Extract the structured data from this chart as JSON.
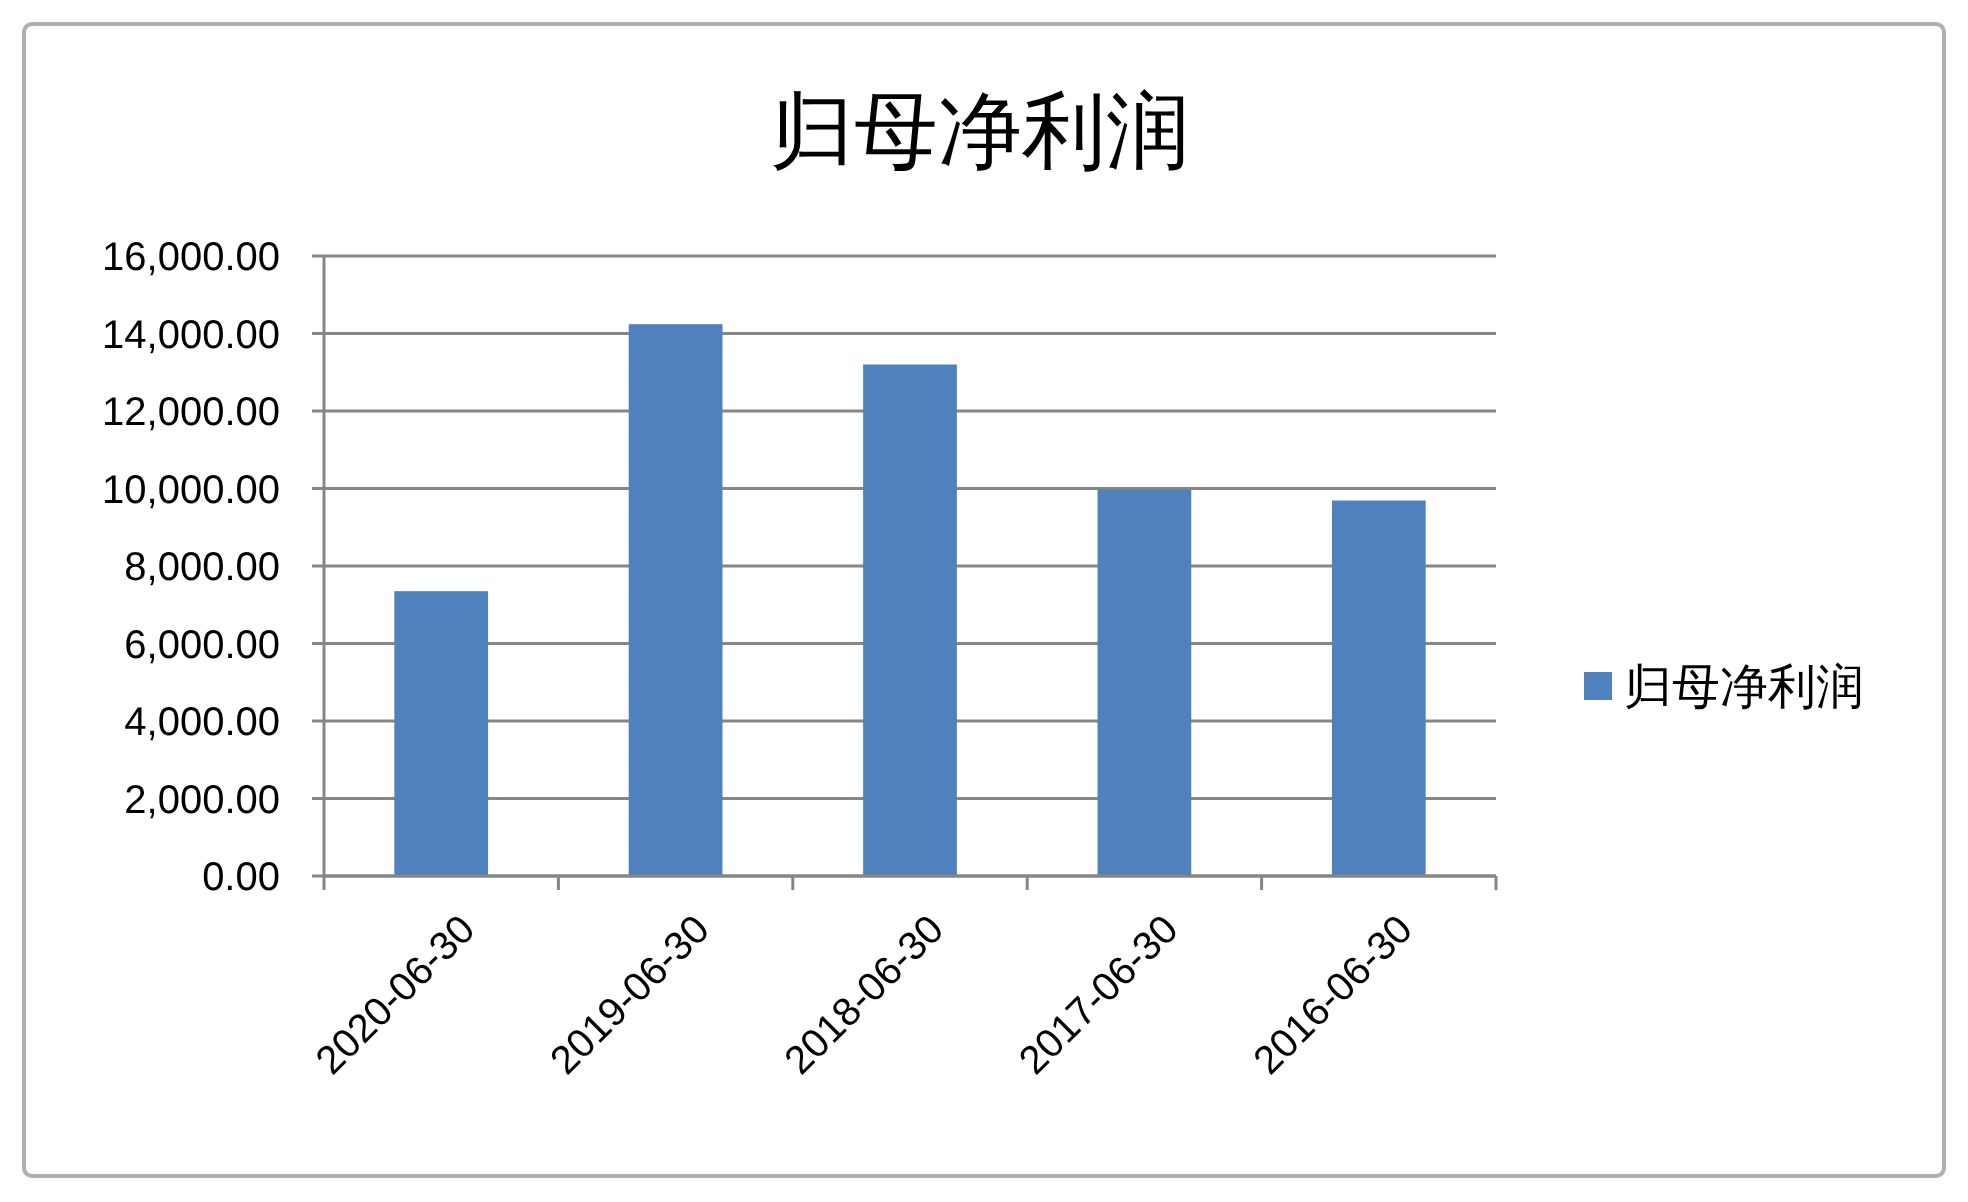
{
  "chart_data": {
    "type": "bar",
    "title": "归母净利润",
    "categories": [
      "2020-06-30",
      "2019-06-30",
      "2018-06-30",
      "2017-06-30",
      "2016-06-30"
    ],
    "series": [
      {
        "name": "归母净利润",
        "color": "#4f81bd",
        "values": [
          7350,
          14240,
          13200,
          9970,
          9690
        ]
      }
    ],
    "ylim": [
      0,
      16000
    ],
    "yticks": [
      {
        "value": 0,
        "label": "0.00"
      },
      {
        "value": 2000,
        "label": "2,000.00"
      },
      {
        "value": 4000,
        "label": "4,000.00"
      },
      {
        "value": 6000,
        "label": "6,000.00"
      },
      {
        "value": 8000,
        "label": "8,000.00"
      },
      {
        "value": 10000,
        "label": "10,000.00"
      },
      {
        "value": 12000,
        "label": "12,000.00"
      },
      {
        "value": 14000,
        "label": "14,000.00"
      },
      {
        "value": 16000,
        "label": "16,000.00"
      }
    ],
    "grid": "y",
    "legend": "right"
  }
}
